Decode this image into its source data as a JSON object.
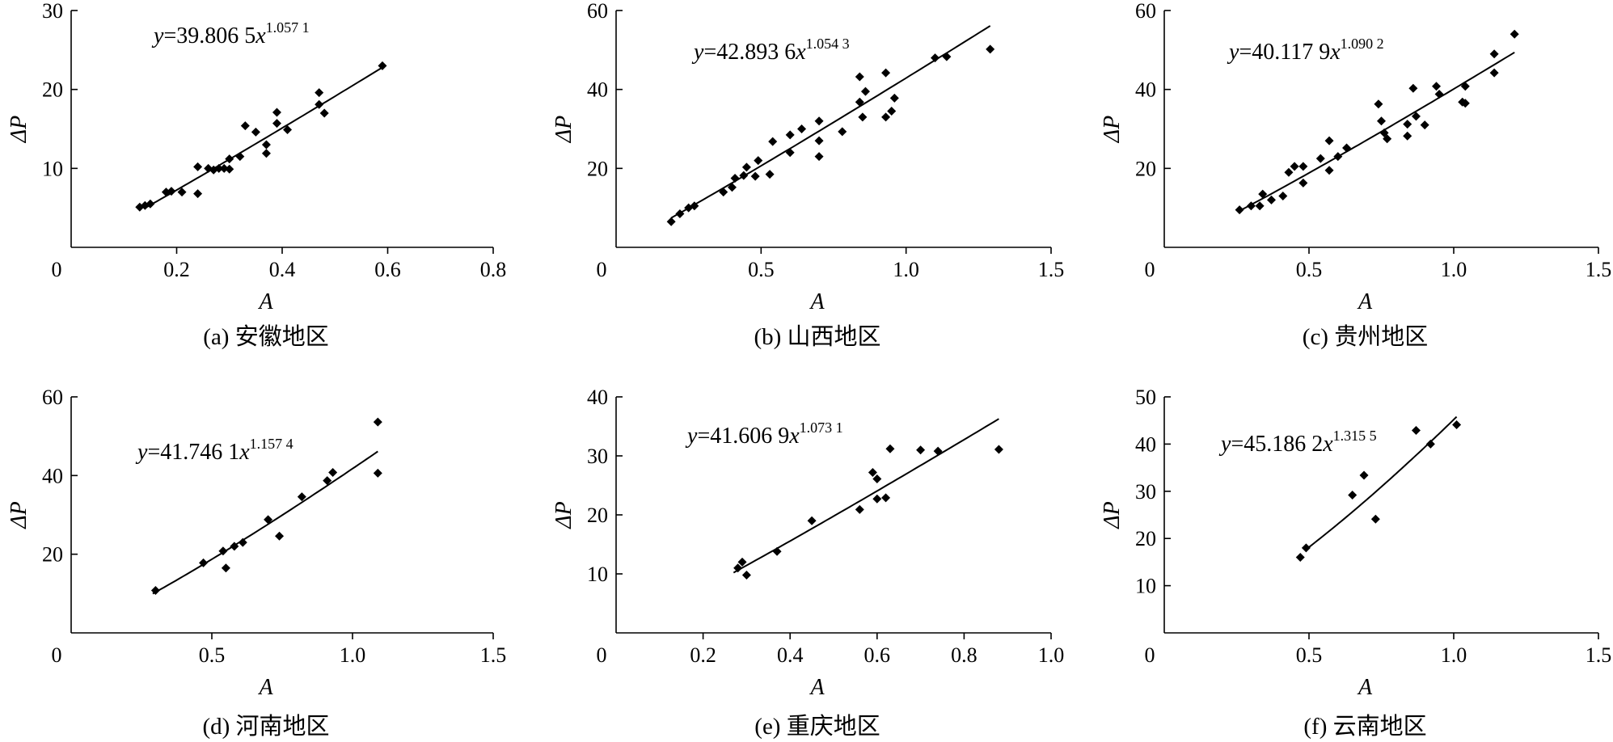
{
  "chart_data": [
    {
      "type": "scatter",
      "caption": "(a) 安徽地区",
      "xlabel": "A",
      "ylabel": "ΔP",
      "equation": {
        "base": "y=39.806 5x",
        "exponent": "1.057 1"
      },
      "fit": {
        "a": 39.8065,
        "b": 1.0571,
        "xrange": [
          0.14,
          0.59
        ]
      },
      "xlim": [
        0,
        0.8
      ],
      "ylim": [
        0,
        30
      ],
      "xticks": [
        0,
        0.2,
        0.4,
        0.6,
        0.8
      ],
      "xtick_labels": [
        "0",
        "0.2",
        "0.4",
        "0.6",
        "0.8"
      ],
      "yticks": [
        10,
        20,
        30
      ],
      "ytick_labels": [
        "10",
        "20",
        "30"
      ],
      "zero_label": "0",
      "points": [
        [
          0.13,
          5.1
        ],
        [
          0.14,
          5.3
        ],
        [
          0.15,
          5.5
        ],
        [
          0.18,
          7.0
        ],
        [
          0.19,
          7.1
        ],
        [
          0.21,
          7.0
        ],
        [
          0.24,
          10.2
        ],
        [
          0.24,
          6.8
        ],
        [
          0.26,
          10.0
        ],
        [
          0.27,
          9.8
        ],
        [
          0.28,
          10.0
        ],
        [
          0.29,
          10.0
        ],
        [
          0.3,
          11.2
        ],
        [
          0.3,
          9.9
        ],
        [
          0.32,
          11.5
        ],
        [
          0.33,
          15.4
        ],
        [
          0.35,
          14.6
        ],
        [
          0.37,
          13.0
        ],
        [
          0.37,
          11.9
        ],
        [
          0.39,
          17.1
        ],
        [
          0.39,
          15.7
        ],
        [
          0.41,
          14.9
        ],
        [
          0.47,
          19.6
        ],
        [
          0.47,
          18.1
        ],
        [
          0.48,
          17.0
        ],
        [
          0.59,
          23.0
        ]
      ]
    },
    {
      "type": "scatter",
      "caption": "(b) 山西地区",
      "xlabel": "A",
      "ylabel": "ΔP",
      "equation": {
        "base": "y=42.893 6x",
        "exponent": "1.054 3"
      },
      "fit": {
        "a": 42.8936,
        "b": 1.0543,
        "xrange": [
          0.19,
          1.29
        ]
      },
      "xlim": [
        0,
        1.5
      ],
      "ylim": [
        0,
        60
      ],
      "xticks": [
        0,
        0.5,
        1.0,
        1.5
      ],
      "xtick_labels": [
        "0",
        "0.5",
        "1.0",
        "1.5"
      ],
      "yticks": [
        20,
        40,
        60
      ],
      "ytick_labels": [
        "20",
        "40",
        "60"
      ],
      "zero_label": "0",
      "points": [
        [
          0.19,
          6.5
        ],
        [
          0.22,
          8.5
        ],
        [
          0.25,
          10.0
        ],
        [
          0.27,
          10.5
        ],
        [
          0.37,
          14.0
        ],
        [
          0.4,
          15.2
        ],
        [
          0.41,
          17.5
        ],
        [
          0.44,
          18.2
        ],
        [
          0.45,
          20.3
        ],
        [
          0.48,
          18.0
        ],
        [
          0.49,
          22.0
        ],
        [
          0.53,
          18.5
        ],
        [
          0.54,
          26.8
        ],
        [
          0.6,
          24.0
        ],
        [
          0.6,
          28.5
        ],
        [
          0.64,
          30.0
        ],
        [
          0.7,
          32.0
        ],
        [
          0.7,
          27.0
        ],
        [
          0.7,
          23.0
        ],
        [
          0.78,
          29.3
        ],
        [
          0.84,
          43.2
        ],
        [
          0.84,
          36.8
        ],
        [
          0.85,
          33.0
        ],
        [
          0.86,
          39.5
        ],
        [
          0.93,
          44.2
        ],
        [
          0.93,
          33.0
        ],
        [
          0.95,
          34.5
        ],
        [
          0.96,
          37.8
        ],
        [
          1.1,
          48.0
        ],
        [
          1.14,
          48.3
        ],
        [
          1.29,
          50.2
        ]
      ]
    },
    {
      "type": "scatter",
      "caption": "(c) 贵州地区",
      "xlabel": "A",
      "ylabel": "ΔP",
      "equation": {
        "base": "y=40.117 9x",
        "exponent": "1.090 2"
      },
      "fit": {
        "a": 40.1179,
        "b": 1.0902,
        "xrange": [
          0.26,
          1.21
        ]
      },
      "xlim": [
        0,
        1.5
      ],
      "ylim": [
        0,
        60
      ],
      "xticks": [
        0,
        0.5,
        1.0,
        1.5
      ],
      "xtick_labels": [
        "0",
        "0.5",
        "1.0",
        "1.5"
      ],
      "yticks": [
        20,
        40,
        60
      ],
      "ytick_labels": [
        "20",
        "40",
        "60"
      ],
      "zero_label": "0",
      "points": [
        [
          0.26,
          9.5
        ],
        [
          0.3,
          10.5
        ],
        [
          0.33,
          10.5
        ],
        [
          0.34,
          13.5
        ],
        [
          0.37,
          12.0
        ],
        [
          0.41,
          13.0
        ],
        [
          0.43,
          19.0
        ],
        [
          0.45,
          20.5
        ],
        [
          0.48,
          20.5
        ],
        [
          0.48,
          16.3
        ],
        [
          0.54,
          22.5
        ],
        [
          0.57,
          27.0
        ],
        [
          0.57,
          19.5
        ],
        [
          0.6,
          23.0
        ],
        [
          0.63,
          25.2
        ],
        [
          0.74,
          36.3
        ],
        [
          0.75,
          32.0
        ],
        [
          0.76,
          29.0
        ],
        [
          0.77,
          27.5
        ],
        [
          0.84,
          28.2
        ],
        [
          0.84,
          31.2
        ],
        [
          0.86,
          40.3
        ],
        [
          0.87,
          33.2
        ],
        [
          0.9,
          31.0
        ],
        [
          0.94,
          40.8
        ],
        [
          0.95,
          38.8
        ],
        [
          1.03,
          36.8
        ],
        [
          1.04,
          36.5
        ],
        [
          1.04,
          40.8
        ],
        [
          1.14,
          49.0
        ],
        [
          1.14,
          44.2
        ],
        [
          1.21,
          54.0
        ]
      ]
    },
    {
      "type": "scatter",
      "caption": "(d) 河南地区",
      "xlabel": "A",
      "ylabel": "ΔP",
      "equation": {
        "base": "y=41.746 1x",
        "exponent": "1.157 4"
      },
      "fit": {
        "a": 41.7461,
        "b": 1.1574,
        "xrange": [
          0.29,
          1.09
        ]
      },
      "xlim": [
        0,
        1.5
      ],
      "ylim": [
        0,
        60
      ],
      "xticks": [
        0,
        0.5,
        1.0,
        1.5
      ],
      "xtick_labels": [
        "0",
        "0.5",
        "1.0",
        "1.5"
      ],
      "yticks": [
        20,
        40,
        60
      ],
      "ytick_labels": [
        "20",
        "40",
        "60"
      ],
      "zero_label": "0",
      "points": [
        [
          0.3,
          10.8
        ],
        [
          0.47,
          17.8
        ],
        [
          0.54,
          20.8
        ],
        [
          0.55,
          16.5
        ],
        [
          0.58,
          22.0
        ],
        [
          0.61,
          23.0
        ],
        [
          0.7,
          28.8
        ],
        [
          0.74,
          24.6
        ],
        [
          0.82,
          34.6
        ],
        [
          0.91,
          38.7
        ],
        [
          0.93,
          40.8
        ],
        [
          1.09,
          53.6
        ],
        [
          1.09,
          40.6
        ]
      ]
    },
    {
      "type": "scatter",
      "caption": "(e) 重庆地区",
      "xlabel": "A",
      "ylabel": "ΔP",
      "equation": {
        "base": "y=41.606 9x",
        "exponent": "1.073 1"
      },
      "fit": {
        "a": 41.6069,
        "b": 1.0731,
        "xrange": [
          0.27,
          0.88
        ]
      },
      "xlim": [
        0,
        1.0
      ],
      "ylim": [
        0,
        40
      ],
      "xticks": [
        0,
        0.2,
        0.4,
        0.6,
        0.8,
        1.0
      ],
      "xtick_labels": [
        "0",
        "0.2",
        "0.4",
        "0.6",
        "0.8",
        "1.0"
      ],
      "yticks": [
        10,
        20,
        30,
        40
      ],
      "ytick_labels": [
        "10",
        "20",
        "30",
        "40"
      ],
      "zero_label": "0",
      "points": [
        [
          0.28,
          11.0
        ],
        [
          0.29,
          12.0
        ],
        [
          0.3,
          9.8
        ],
        [
          0.37,
          13.8
        ],
        [
          0.45,
          19.0
        ],
        [
          0.56,
          20.9
        ],
        [
          0.59,
          27.2
        ],
        [
          0.6,
          26.1
        ],
        [
          0.6,
          22.7
        ],
        [
          0.62,
          22.9
        ],
        [
          0.63,
          31.2
        ],
        [
          0.7,
          31.0
        ],
        [
          0.74,
          30.8
        ],
        [
          0.88,
          31.1
        ]
      ]
    },
    {
      "type": "scatter",
      "caption": "(f) 云南地区",
      "xlabel": "A",
      "ylabel": "ΔP",
      "equation": {
        "base": "y=45.186 2x",
        "exponent": "1.315 5"
      },
      "fit": {
        "a": 45.1862,
        "b": 1.3155,
        "xrange": [
          0.49,
          1.01
        ]
      },
      "xlim": [
        0,
        1.5
      ],
      "ylim": [
        0,
        50
      ],
      "xticks": [
        0,
        0.5,
        1.0,
        1.5
      ],
      "xtick_labels": [
        "0",
        "0.5",
        "1.0",
        "1.5"
      ],
      "yticks": [
        10,
        20,
        30,
        40,
        50
      ],
      "ytick_labels": [
        "10",
        "20",
        "30",
        "40",
        "50"
      ],
      "zero_label": "0",
      "points": [
        [
          0.47,
          16.0
        ],
        [
          0.49,
          18.0
        ],
        [
          0.65,
          29.2
        ],
        [
          0.69,
          33.4
        ],
        [
          0.73,
          24.1
        ],
        [
          0.87,
          42.9
        ],
        [
          0.92,
          40.0
        ],
        [
          1.01,
          44.1
        ]
      ]
    }
  ]
}
